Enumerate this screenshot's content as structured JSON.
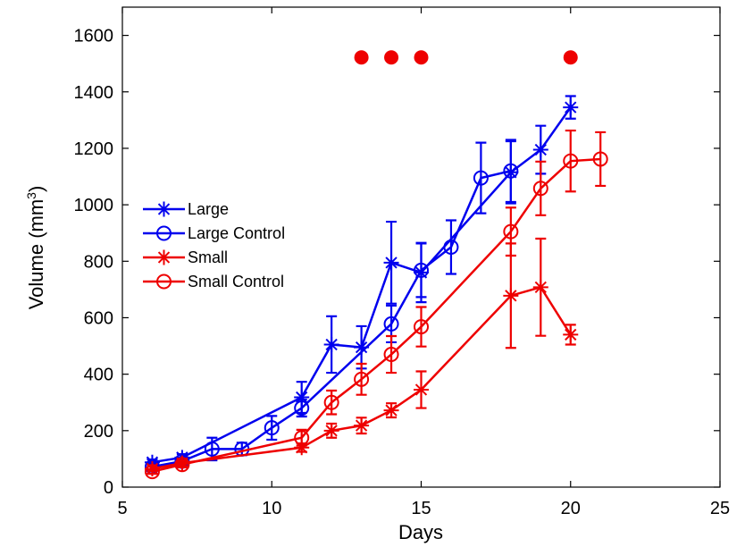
{
  "chart_data": {
    "type": "line",
    "xlabel": "Days",
    "ylabel_main": "Volume (mm",
    "ylabel_sup": "3",
    "ylabel_close": ")",
    "xlim": [
      5,
      25
    ],
    "ylim": [
      0,
      1700
    ],
    "xticks": [
      5,
      10,
      15,
      20,
      25
    ],
    "yticks": [
      0,
      200,
      400,
      600,
      800,
      1000,
      1200,
      1400,
      1600
    ],
    "grid": false,
    "legend_position": "middle-left",
    "series": [
      {
        "name": "Large",
        "color": "#0000ee",
        "marker": "star",
        "x": [
          6,
          7,
          11,
          12,
          13,
          14,
          15,
          18,
          19,
          20
        ],
        "y": [
          88,
          105,
          318,
          505,
          495,
          795,
          760,
          1115,
          1195,
          1345
        ],
        "err": [
          10,
          12,
          55,
          100,
          75,
          145,
          105,
          110,
          85,
          40
        ]
      },
      {
        "name": "Large Control",
        "color": "#0000ee",
        "marker": "circle",
        "x": [
          6,
          7,
          8,
          9,
          10,
          11,
          14,
          15,
          16,
          17,
          18
        ],
        "y": [
          72,
          92,
          135,
          135,
          210,
          280,
          578,
          768,
          850,
          1095,
          1120
        ],
        "err": [
          10,
          12,
          40,
          22,
          42,
          30,
          65,
          95,
          95,
          125,
          110
        ]
      },
      {
        "name": "Small",
        "color": "#ee0000",
        "marker": "star",
        "x": [
          6,
          7,
          11,
          12,
          13,
          14,
          15,
          18,
          19,
          20
        ],
        "y": [
          65,
          85,
          140,
          200,
          218,
          272,
          345,
          678,
          708,
          540
        ],
        "err": [
          8,
          10,
          15,
          25,
          28,
          25,
          65,
          185,
          172,
          35
        ]
      },
      {
        "name": "Small Control",
        "color": "#ee0000",
        "marker": "circle",
        "x": [
          6,
          7,
          11,
          12,
          13,
          14,
          15,
          18,
          19,
          20,
          21
        ],
        "y": [
          55,
          80,
          175,
          300,
          382,
          470,
          568,
          905,
          1058,
          1155,
          1162
        ],
        "err": [
          8,
          10,
          28,
          42,
          55,
          65,
          70,
          85,
          95,
          108,
          95
        ]
      }
    ],
    "significance_markers": {
      "color": "#ee0000",
      "x": [
        13,
        14,
        15,
        20
      ],
      "y": 1522
    }
  }
}
